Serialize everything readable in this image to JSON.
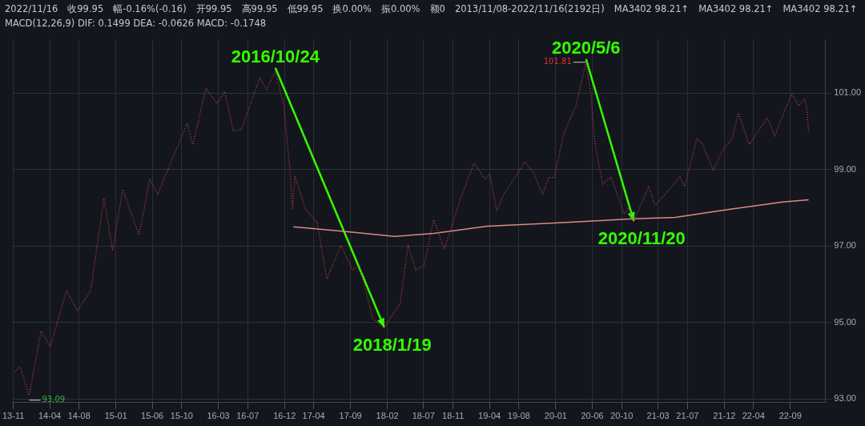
{
  "chart_data": {
    "type": "line",
    "grid": true,
    "legend": false,
    "marker": "none",
    "xlim": [
      "2013-10-29",
      "2023-01-24"
    ],
    "ylim": [
      92.9,
      102.4
    ],
    "xticks": [
      {
        "value": "2013-11-01",
        "label": "13-11"
      },
      {
        "value": "2014-04-01",
        "label": "14-04"
      },
      {
        "value": "2014-08-01",
        "label": "14-08"
      },
      {
        "value": "2015-01-01",
        "label": "15-01"
      },
      {
        "value": "2015-06-01",
        "label": "15-06"
      },
      {
        "value": "2015-10-01",
        "label": "15-10"
      },
      {
        "value": "2016-03-01",
        "label": "16-03"
      },
      {
        "value": "2016-07-01",
        "label": "16-07"
      },
      {
        "value": "2016-12-01",
        "label": "16-12"
      },
      {
        "value": "2017-04-01",
        "label": "17-04"
      },
      {
        "value": "2017-09-01",
        "label": "17-09"
      },
      {
        "value": "2018-02-01",
        "label": "18-02"
      },
      {
        "value": "2018-07-01",
        "label": "18-07"
      },
      {
        "value": "2018-11-01",
        "label": "18-11"
      },
      {
        "value": "2019-04-01",
        "label": "19-04"
      },
      {
        "value": "2019-08-01",
        "label": "19-08"
      },
      {
        "value": "2020-01-01",
        "label": "20-01"
      },
      {
        "value": "2020-06-01",
        "label": "20-06"
      },
      {
        "value": "2020-10-01",
        "label": "20-10"
      },
      {
        "value": "2021-03-01",
        "label": "21-03"
      },
      {
        "value": "2021-07-01",
        "label": "21-07"
      },
      {
        "value": "2021-12-01",
        "label": "21-12"
      },
      {
        "value": "2022-04-01",
        "label": "22-04"
      },
      {
        "value": "2022-09-01",
        "label": "22-09"
      }
    ],
    "yticks": [
      {
        "value": 93,
        "label": "93.00"
      },
      {
        "value": 95,
        "label": "95.00"
      },
      {
        "value": 97,
        "label": "97.00"
      },
      {
        "value": 99,
        "label": "99.00"
      },
      {
        "value": 101,
        "label": "101.00"
      }
    ],
    "series": [
      {
        "color": "#a8404a",
        "line_style": "dotted",
        "x": [
          "2013-11-08",
          "2013-11-28",
          "2014-01-06",
          "2014-02-24",
          "2014-04-03",
          "2014-06-10",
          "2014-07-25",
          "2014-09-18",
          "2014-11-12",
          "2014-12-18",
          "2015-01-29",
          "2015-04-07",
          "2015-05-22",
          "2015-06-23",
          "2015-10-24",
          "2015-11-16",
          "2016-01-10",
          "2016-02-24",
          "2016-03-28",
          "2016-05-02",
          "2016-06-04",
          "2016-08-20",
          "2016-09-18",
          "2016-10-24",
          "2016-11-28",
          "2016-12-21",
          "2017-01-03",
          "2017-01-13",
          "2017-02-27",
          "2017-04-15",
          "2017-05-26",
          "2017-07-23",
          "2017-09-09",
          "2017-10-08",
          "2017-12-02",
          "2018-01-19",
          "2018-03-26",
          "2018-04-28",
          "2018-05-30",
          "2018-07-04",
          "2018-08-12",
          "2018-09-26",
          "2018-11-30",
          "2019-01-27",
          "2019-03-13",
          "2019-04-02",
          "2019-05-01",
          "2019-05-30",
          "2019-07-11",
          "2019-08-25",
          "2019-09-29",
          "2019-11-07",
          "2019-12-03",
          "2019-12-26",
          "2020-02-03",
          "2020-03-25",
          "2020-05-06",
          "2020-05-25",
          "2020-06-12",
          "2020-07-14",
          "2020-08-18",
          "2020-10-12",
          "2020-10-30",
          "2020-11-20",
          "2021-01-21",
          "2021-02-16",
          "2021-03-30",
          "2021-05-31",
          "2021-06-19",
          "2021-08-09",
          "2021-09-01",
          "2021-10-16",
          "2021-11-27",
          "2022-01-02",
          "2022-01-28",
          "2022-03-15",
          "2022-04-22",
          "2022-05-28",
          "2022-06-29",
          "2022-08-13",
          "2022-09-08",
          "2022-10-07",
          "2022-10-30",
          "2022-11-08",
          "2022-11-16"
        ],
        "values": [
          93.71,
          93.85,
          93.09,
          94.77,
          94.37,
          95.83,
          95.31,
          95.83,
          98.25,
          96.88,
          98.48,
          97.29,
          98.75,
          98.35,
          100.21,
          99.65,
          101.13,
          100.73,
          101.04,
          100.02,
          100.04,
          101.4,
          101.1,
          101.58,
          100.67,
          99.15,
          97.96,
          98.81,
          97.96,
          97.62,
          96.13,
          97.02,
          96.37,
          96.5,
          95.1,
          94.87,
          95.5,
          97.02,
          96.37,
          96.5,
          97.69,
          96.92,
          98.21,
          99.17,
          98.75,
          98.88,
          97.92,
          98.35,
          98.75,
          99.21,
          98.94,
          98.35,
          98.79,
          98.79,
          99.94,
          100.67,
          101.81,
          101.0,
          99.67,
          98.62,
          98.81,
          97.83,
          98.02,
          97.65,
          98.56,
          98.06,
          98.35,
          98.81,
          98.56,
          99.81,
          99.67,
          98.98,
          99.54,
          99.81,
          100.48,
          99.65,
          100.02,
          100.35,
          99.88,
          100.62,
          100.98,
          100.67,
          100.85,
          100.62,
          99.95
        ]
      },
      {
        "color": "#d98a8a",
        "line_style": "solid",
        "x": [
          "2017-01-07",
          "2017-08-24",
          "2018-03-03",
          "2018-08-12",
          "2019-03-23",
          "2019-12-26",
          "2020-11-17",
          "2021-05-11",
          "2021-12-20",
          "2022-07-31",
          "2022-11-16"
        ],
        "values": [
          97.5,
          97.37,
          97.25,
          97.33,
          97.52,
          97.6,
          97.71,
          97.75,
          97.96,
          98.15,
          98.21
        ]
      }
    ],
    "annotations": [
      "2022/11/16",
      "收99.95",
      "幅-0.16%(-0.16)",
      "开99.95",
      "高99.95",
      "低99.95",
      "换0.00%",
      "振0.00%",
      "额0",
      "2013/11/08-2022/11/16(2192日)",
      "MA3402 98.21↑",
      "MA3402 98.21↑",
      "MA3402 98.21↑",
      "MACD(12,26,9) DIF: 0.1499 DEA: -0.0626 MACD: -0.1748",
      {
        "text": "2016/10/24",
        "x": "2016-10-24",
        "y": 101.58
      },
      {
        "text": "2018/1/19",
        "x": "2018-01-19",
        "y": 94.87
      },
      {
        "text": "2020/5/6",
        "x": "2020-05-06",
        "y": 101.81
      },
      {
        "text": "2020/11/20",
        "x": "2020-11-20",
        "y": 97.65
      },
      {
        "text": "101.81",
        "x": "2020-05-06",
        "y": 101.81
      },
      {
        "text": "93.09",
        "x": "2014-01-06",
        "y": 93.09
      }
    ]
  }
}
